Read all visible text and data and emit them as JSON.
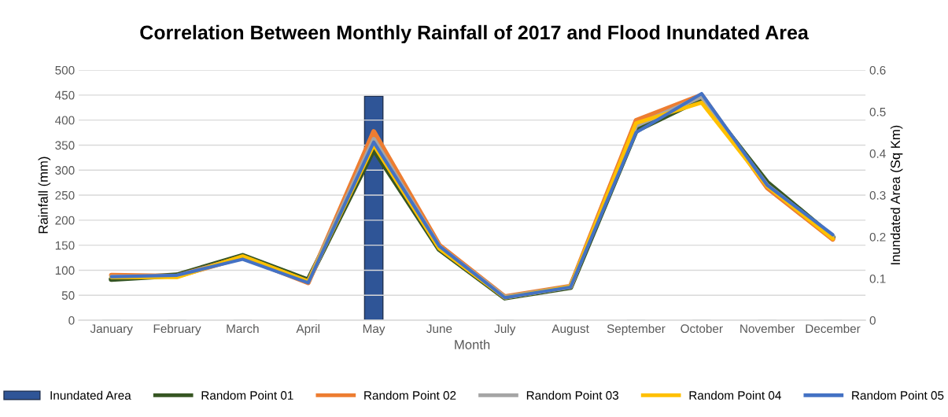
{
  "chart_data": {
    "type": "line",
    "title": "Correlation Between Monthly Rainfall of 2017 and Flood Inundated Area",
    "xlabel": "Month",
    "ylabel": "Rainfall (mm)",
    "y2label": "Inundated Area (Sq Km)",
    "categories": [
      "January",
      "February",
      "March",
      "April",
      "May",
      "June",
      "July",
      "August",
      "September",
      "October",
      "November",
      "December"
    ],
    "series": [
      {
        "name": "Inundated Area",
        "type": "bar",
        "axis": "y2",
        "color": "#2f5597",
        "values": [
          null,
          null,
          null,
          null,
          0.537,
          null,
          null,
          null,
          null,
          null,
          null,
          null
        ]
      },
      {
        "name": "Random Point 01",
        "color": "#375623",
        "values": [
          82,
          90,
          129,
          80,
          342,
          142,
          45,
          66,
          379,
          443,
          275,
          166
        ]
      },
      {
        "name": "Random Point 02",
        "color": "#ed7d31",
        "values": [
          90,
          88,
          126,
          75,
          377,
          150,
          47,
          68,
          399,
          450,
          265,
          162
        ]
      },
      {
        "name": "Random Point 03",
        "color": "#a5a5a5",
        "values": [
          87,
          88,
          126,
          77,
          362,
          147,
          46,
          67,
          389,
          447,
          270,
          167
        ]
      },
      {
        "name": "Random Point 04",
        "color": "#ffc000",
        "values": [
          86,
          86,
          128,
          78,
          350,
          143,
          45,
          67,
          394,
          435,
          268,
          163
        ]
      },
      {
        "name": "Random Point 05",
        "color": "#4472c4",
        "values": [
          87,
          90,
          122,
          75,
          356,
          148,
          45,
          66,
          375,
          453,
          270,
          171
        ]
      }
    ],
    "ylim": [
      0,
      500
    ],
    "yticks": [
      0,
      50,
      100,
      150,
      200,
      250,
      300,
      350,
      400,
      450,
      500
    ],
    "y2lim": [
      0,
      0.6
    ],
    "y2ticks": [
      0,
      0.1,
      0.2,
      0.3,
      0.4,
      0.5,
      0.6
    ],
    "grid": "y",
    "legend": "bottom"
  }
}
